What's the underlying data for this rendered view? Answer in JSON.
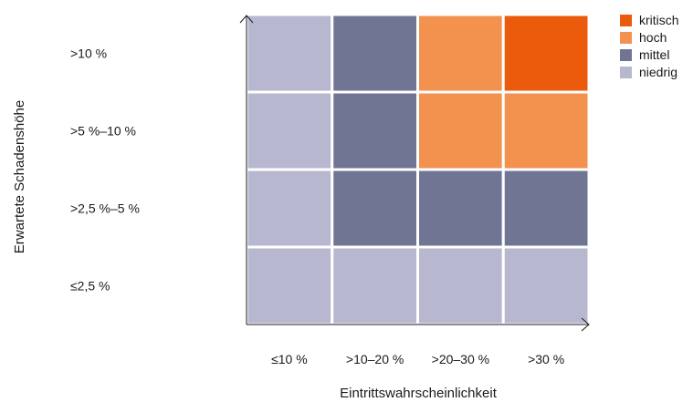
{
  "chart_data": {
    "type": "heatmap",
    "xlabel": "Eintrittswahrscheinlichkeit",
    "ylabel": "Erwartete Schadenshöhe",
    "x_categories": [
      "≤10 %",
      ">10–20 %",
      ">20–30 %",
      ">30 %"
    ],
    "y_categories": [
      "≤2,5 %",
      ">2,5 %–5 %",
      ">5 %–10 %",
      ">10 %"
    ],
    "levels": {
      "kritisch": "#eb5b0b",
      "hoch": "#f3914f",
      "mittel": "#717594",
      "niedrig": "#b7b8cf"
    },
    "legend": {
      "position": "top-right",
      "entries": [
        "kritisch",
        "hoch",
        "mittel",
        "niedrig"
      ]
    },
    "cells": [
      [
        "niedrig",
        "niedrig",
        "niedrig",
        "niedrig"
      ],
      [
        "niedrig",
        "mittel",
        "mittel",
        "mittel"
      ],
      [
        "niedrig",
        "mittel",
        "hoch",
        "hoch"
      ],
      [
        "niedrig",
        "mittel",
        "hoch",
        "kritisch"
      ]
    ],
    "grid": true
  }
}
